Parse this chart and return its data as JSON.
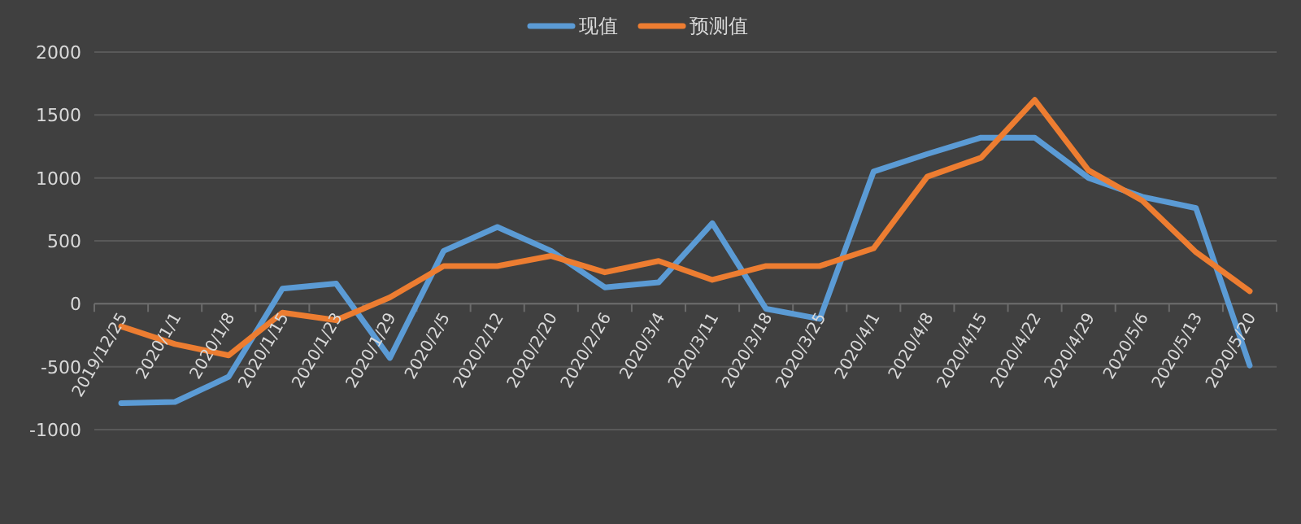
{
  "chart_data": {
    "type": "line",
    "categories": [
      "2019/12/25",
      "2020/1/1",
      "2020/1/8",
      "2020/1/15",
      "2020/1/23",
      "2020/1/29",
      "2020/2/5",
      "2020/2/12",
      "2020/2/20",
      "2020/2/26",
      "2020/3/4",
      "2020/3/11",
      "2020/3/18",
      "2020/3/25",
      "2020/4/1",
      "2020/4/8",
      "2020/4/15",
      "2020/4/22",
      "2020/4/29",
      "2020/5/6",
      "2020/5/13",
      "2020/5/20"
    ],
    "series": [
      {
        "name": "现值",
        "color": "#5b9bd5",
        "values": [
          -790,
          -780,
          -580,
          120,
          160,
          -430,
          420,
          610,
          420,
          130,
          170,
          640,
          -40,
          -120,
          1050,
          1190,
          1320,
          1320,
          1000,
          850,
          760,
          -490
        ]
      },
      {
        "name": "预测值",
        "color": "#ed7d31",
        "values": [
          -180,
          -320,
          -410,
          -70,
          -130,
          50,
          300,
          300,
          380,
          250,
          340,
          190,
          300,
          300,
          440,
          1010,
          1160,
          1620,
          1060,
          820,
          410,
          100
        ]
      }
    ],
    "ylim": [
      -1000,
      2000
    ],
    "yticks": [
      -1000,
      -500,
      0,
      500,
      1000,
      1500,
      2000
    ],
    "grid": "y",
    "legend": "top",
    "marker": "none",
    "line_style": "solid"
  }
}
